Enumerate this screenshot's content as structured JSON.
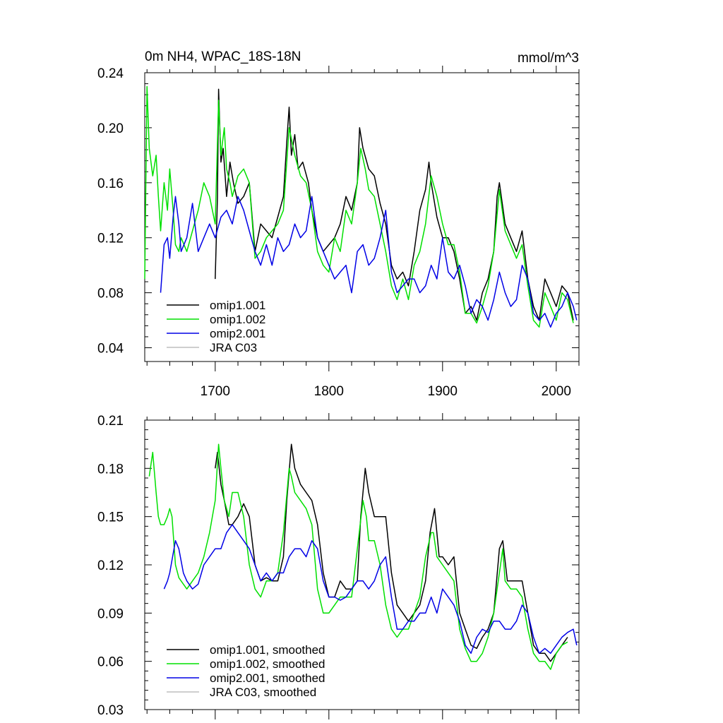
{
  "colors": {
    "omip1.001": "#000000",
    "omip1.002": "#00e000",
    "omip2.001": "#0000e6",
    "JRA C03": "#bdbdbd"
  },
  "chart_data": [
    {
      "type": "line",
      "title": "0m NH4, WPAC_18S-18N",
      "units": "mmol/m^3",
      "xlabel": "",
      "ylabel": "",
      "xlim": [
        1638,
        2020
      ],
      "ylim": [
        0.03,
        0.24
      ],
      "xticks": [
        1700,
        1800,
        1900,
        2000
      ],
      "xtick_labels": [
        "1700",
        "1800",
        "1900",
        "2000"
      ],
      "yticks": [
        0.04,
        0.08,
        0.12,
        0.16,
        0.2,
        0.24
      ],
      "ytick_labels": [
        "0.04",
        "0.08",
        "0.12",
        "0.16",
        "0.20",
        "0.24"
      ],
      "grid": false,
      "legend_position": "bottom-left",
      "legend": [
        "omip1.001",
        "omip1.002",
        "omip2.001",
        "JRA C03"
      ],
      "series": [
        {
          "name": "omip1.001",
          "x": [
            1700,
            1702,
            1703,
            1705,
            1707,
            1710,
            1713,
            1716,
            1720,
            1725,
            1730,
            1735,
            1740,
            1745,
            1750,
            1755,
            1760,
            1763,
            1765,
            1767,
            1770,
            1773,
            1777,
            1782,
            1785,
            1790,
            1795,
            1800,
            1805,
            1810,
            1815,
            1820,
            1825,
            1827,
            1830,
            1835,
            1840,
            1845,
            1850,
            1855,
            1860,
            1865,
            1870,
            1875,
            1880,
            1885,
            1888,
            1890,
            1895,
            1900,
            1905,
            1910,
            1915,
            1920,
            1925,
            1930,
            1935,
            1940,
            1945,
            1948,
            1950,
            1955,
            1960,
            1965,
            1970,
            1975,
            1980,
            1985,
            1990,
            1995,
            2000,
            2005,
            2010,
            2015
          ],
          "y": [
            0.09,
            0.15,
            0.228,
            0.175,
            0.185,
            0.15,
            0.175,
            0.16,
            0.145,
            0.15,
            0.16,
            0.11,
            0.13,
            0.125,
            0.12,
            0.135,
            0.15,
            0.19,
            0.215,
            0.18,
            0.195,
            0.17,
            0.175,
            0.16,
            0.14,
            0.12,
            0.11,
            0.115,
            0.12,
            0.13,
            0.15,
            0.14,
            0.16,
            0.2,
            0.185,
            0.17,
            0.165,
            0.145,
            0.13,
            0.1,
            0.09,
            0.095,
            0.085,
            0.11,
            0.14,
            0.155,
            0.175,
            0.16,
            0.135,
            0.12,
            0.12,
            0.11,
            0.09,
            0.065,
            0.07,
            0.06,
            0.08,
            0.09,
            0.11,
            0.15,
            0.16,
            0.13,
            0.12,
            0.11,
            0.125,
            0.09,
            0.07,
            0.06,
            0.09,
            0.08,
            0.07,
            0.085,
            0.08,
            0.06
          ]
        },
        {
          "name": "omip1.002",
          "x": [
            1638,
            1640,
            1642,
            1645,
            1648,
            1650,
            1652,
            1655,
            1658,
            1660,
            1663,
            1665,
            1668,
            1670,
            1675,
            1680,
            1685,
            1690,
            1695,
            1700,
            1703,
            1705,
            1708,
            1710,
            1713,
            1715,
            1720,
            1725,
            1730,
            1735,
            1740,
            1745,
            1750,
            1755,
            1760,
            1765,
            1770,
            1775,
            1780,
            1785,
            1790,
            1795,
            1800,
            1805,
            1810,
            1815,
            1820,
            1825,
            1828,
            1832,
            1835,
            1840,
            1845,
            1850,
            1855,
            1860,
            1865,
            1870,
            1875,
            1880,
            1885,
            1890,
            1895,
            1900,
            1905,
            1910,
            1915,
            1920,
            1925,
            1930,
            1935,
            1940,
            1945,
            1950,
            1955,
            1960,
            1965,
            1970,
            1975,
            1980,
            1985,
            1990,
            1995,
            2000,
            2005,
            2010,
            2015
          ],
          "y": [
            0.09,
            0.23,
            0.185,
            0.165,
            0.18,
            0.15,
            0.125,
            0.16,
            0.14,
            0.17,
            0.14,
            0.115,
            0.11,
            0.12,
            0.11,
            0.125,
            0.14,
            0.16,
            0.15,
            0.13,
            0.22,
            0.18,
            0.2,
            0.17,
            0.16,
            0.15,
            0.165,
            0.17,
            0.16,
            0.105,
            0.11,
            0.12,
            0.125,
            0.13,
            0.14,
            0.2,
            0.18,
            0.165,
            0.16,
            0.14,
            0.11,
            0.1,
            0.095,
            0.12,
            0.11,
            0.14,
            0.13,
            0.16,
            0.185,
            0.17,
            0.155,
            0.15,
            0.13,
            0.11,
            0.085,
            0.075,
            0.09,
            0.075,
            0.1,
            0.11,
            0.13,
            0.165,
            0.15,
            0.13,
            0.115,
            0.115,
            0.095,
            0.065,
            0.065,
            0.058,
            0.07,
            0.085,
            0.11,
            0.155,
            0.125,
            0.115,
            0.105,
            0.115,
            0.085,
            0.06,
            0.055,
            0.08,
            0.07,
            0.06,
            0.08,
            0.075,
            0.058
          ]
        },
        {
          "name": "omip2.001",
          "x": [
            1652,
            1655,
            1658,
            1660,
            1663,
            1665,
            1668,
            1670,
            1675,
            1680,
            1685,
            1690,
            1695,
            1700,
            1705,
            1710,
            1715,
            1720,
            1725,
            1730,
            1735,
            1740,
            1745,
            1750,
            1755,
            1760,
            1765,
            1770,
            1775,
            1780,
            1785,
            1790,
            1795,
            1800,
            1805,
            1810,
            1815,
            1820,
            1825,
            1830,
            1835,
            1840,
            1845,
            1850,
            1855,
            1860,
            1865,
            1870,
            1875,
            1880,
            1885,
            1890,
            1895,
            1900,
            1905,
            1910,
            1915,
            1920,
            1925,
            1930,
            1935,
            1940,
            1945,
            1950,
            1955,
            1960,
            1965,
            1970,
            1975,
            1980,
            1985,
            1990,
            1995,
            2000,
            2005,
            2010,
            2015,
            2018
          ],
          "y": [
            0.08,
            0.115,
            0.12,
            0.105,
            0.135,
            0.15,
            0.13,
            0.11,
            0.12,
            0.145,
            0.11,
            0.12,
            0.13,
            0.12,
            0.135,
            0.14,
            0.13,
            0.15,
            0.14,
            0.125,
            0.11,
            0.1,
            0.115,
            0.1,
            0.12,
            0.11,
            0.115,
            0.13,
            0.12,
            0.125,
            0.15,
            0.12,
            0.11,
            0.1,
            0.09,
            0.095,
            0.1,
            0.08,
            0.11,
            0.115,
            0.1,
            0.105,
            0.12,
            0.14,
            0.095,
            0.08,
            0.085,
            0.09,
            0.09,
            0.08,
            0.085,
            0.1,
            0.09,
            0.12,
            0.095,
            0.09,
            0.1,
            0.085,
            0.065,
            0.075,
            0.07,
            0.06,
            0.075,
            0.095,
            0.08,
            0.07,
            0.075,
            0.1,
            0.09,
            0.065,
            0.06,
            0.065,
            0.055,
            0.065,
            0.07,
            0.08,
            0.07,
            0.06
          ]
        }
      ]
    },
    {
      "type": "line",
      "title": "",
      "xlabel": "",
      "ylabel": "",
      "xlim": [
        1638,
        2020
      ],
      "ylim": [
        0.03,
        0.21
      ],
      "xticks": [
        1700,
        1800,
        1900,
        2000
      ],
      "xtick_labels": [],
      "yticks": [
        0.03,
        0.06,
        0.09,
        0.12,
        0.15,
        0.18,
        0.21
      ],
      "ytick_labels": [
        "0.03",
        "0.06",
        "0.09",
        "0.12",
        "0.15",
        "0.18",
        "0.21"
      ],
      "grid": false,
      "legend_position": "bottom-left",
      "legend": [
        "omip1.001, smoothed",
        "omip1.002, smoothed",
        "omip2.001, smoothed",
        "JRA C03, smoothed"
      ],
      "series": [
        {
          "name": "omip1.001, smoothed",
          "x": [
            1700,
            1702,
            1705,
            1708,
            1712,
            1715,
            1720,
            1725,
            1730,
            1735,
            1740,
            1745,
            1750,
            1755,
            1760,
            1763,
            1767,
            1770,
            1775,
            1780,
            1785,
            1790,
            1795,
            1800,
            1805,
            1810,
            1815,
            1820,
            1825,
            1828,
            1832,
            1835,
            1840,
            1845,
            1850,
            1855,
            1860,
            1865,
            1870,
            1875,
            1880,
            1885,
            1889,
            1893,
            1897,
            1900,
            1905,
            1910,
            1915,
            1920,
            1925,
            1930,
            1935,
            1940,
            1945,
            1950,
            1953,
            1957,
            1960,
            1965,
            1970,
            1975,
            1980,
            1985,
            1990,
            1995,
            2000,
            2005,
            2010
          ],
          "y": [
            0.18,
            0.19,
            0.17,
            0.16,
            0.145,
            0.145,
            0.15,
            0.158,
            0.15,
            0.12,
            0.11,
            0.112,
            0.11,
            0.11,
            0.125,
            0.16,
            0.195,
            0.18,
            0.17,
            0.165,
            0.16,
            0.145,
            0.115,
            0.1,
            0.1,
            0.11,
            0.105,
            0.105,
            0.11,
            0.15,
            0.18,
            0.165,
            0.15,
            0.15,
            0.15,
            0.115,
            0.095,
            0.09,
            0.085,
            0.09,
            0.095,
            0.11,
            0.14,
            0.155,
            0.125,
            0.125,
            0.12,
            0.125,
            0.09,
            0.08,
            0.07,
            0.068,
            0.075,
            0.08,
            0.09,
            0.13,
            0.135,
            0.11,
            0.11,
            0.11,
            0.11,
            0.09,
            0.07,
            0.065,
            0.065,
            0.06,
            0.065,
            0.07,
            0.075
          ]
        },
        {
          "name": "omip1.002, smoothed",
          "x": [
            1642,
            1645,
            1648,
            1650,
            1652,
            1655,
            1658,
            1660,
            1662,
            1665,
            1668,
            1670,
            1675,
            1680,
            1685,
            1690,
            1695,
            1700,
            1703,
            1705,
            1708,
            1712,
            1715,
            1720,
            1725,
            1730,
            1735,
            1740,
            1745,
            1750,
            1755,
            1760,
            1765,
            1767,
            1770,
            1775,
            1780,
            1785,
            1790,
            1795,
            1800,
            1805,
            1810,
            1815,
            1820,
            1825,
            1830,
            1833,
            1835,
            1840,
            1845,
            1850,
            1855,
            1860,
            1865,
            1870,
            1875,
            1880,
            1885,
            1890,
            1892,
            1895,
            1900,
            1905,
            1910,
            1915,
            1920,
            1925,
            1930,
            1935,
            1940,
            1945,
            1950,
            1953,
            1955,
            1960,
            1965,
            1970,
            1975,
            1980,
            1985,
            1990,
            1995,
            2000,
            2005,
            2010
          ],
          "y": [
            0.175,
            0.19,
            0.165,
            0.15,
            0.145,
            0.145,
            0.15,
            0.155,
            0.15,
            0.12,
            0.112,
            0.11,
            0.105,
            0.11,
            0.115,
            0.125,
            0.14,
            0.16,
            0.195,
            0.18,
            0.16,
            0.15,
            0.165,
            0.165,
            0.15,
            0.12,
            0.105,
            0.1,
            0.11,
            0.11,
            0.115,
            0.14,
            0.18,
            0.175,
            0.165,
            0.16,
            0.155,
            0.145,
            0.105,
            0.09,
            0.09,
            0.095,
            0.1,
            0.1,
            0.1,
            0.13,
            0.16,
            0.15,
            0.135,
            0.135,
            0.12,
            0.095,
            0.08,
            0.075,
            0.08,
            0.08,
            0.09,
            0.1,
            0.125,
            0.14,
            0.14,
            0.125,
            0.12,
            0.115,
            0.11,
            0.08,
            0.068,
            0.06,
            0.06,
            0.065,
            0.075,
            0.09,
            0.115,
            0.13,
            0.11,
            0.105,
            0.105,
            0.1,
            0.08,
            0.065,
            0.06,
            0.06,
            0.055,
            0.065,
            0.07,
            0.072
          ]
        },
        {
          "name": "omip2.001, smoothed",
          "x": [
            1655,
            1658,
            1660,
            1665,
            1668,
            1672,
            1675,
            1680,
            1685,
            1690,
            1695,
            1700,
            1705,
            1710,
            1715,
            1720,
            1725,
            1730,
            1735,
            1740,
            1745,
            1750,
            1755,
            1760,
            1765,
            1770,
            1775,
            1780,
            1785,
            1790,
            1795,
            1800,
            1805,
            1810,
            1815,
            1820,
            1825,
            1830,
            1835,
            1840,
            1845,
            1850,
            1855,
            1860,
            1865,
            1870,
            1875,
            1880,
            1885,
            1890,
            1895,
            1900,
            1905,
            1910,
            1915,
            1920,
            1925,
            1930,
            1935,
            1940,
            1945,
            1950,
            1955,
            1960,
            1965,
            1970,
            1975,
            1980,
            1985,
            1990,
            1995,
            2000,
            2005,
            2010,
            2015,
            2018
          ],
          "y": [
            0.105,
            0.11,
            0.115,
            0.135,
            0.13,
            0.115,
            0.11,
            0.105,
            0.108,
            0.12,
            0.125,
            0.13,
            0.13,
            0.14,
            0.145,
            0.14,
            0.135,
            0.13,
            0.12,
            0.11,
            0.115,
            0.11,
            0.115,
            0.115,
            0.125,
            0.13,
            0.13,
            0.125,
            0.135,
            0.13,
            0.11,
            0.1,
            0.1,
            0.098,
            0.1,
            0.105,
            0.11,
            0.11,
            0.105,
            0.11,
            0.12,
            0.125,
            0.1,
            0.08,
            0.08,
            0.085,
            0.085,
            0.09,
            0.09,
            0.1,
            0.09,
            0.105,
            0.1,
            0.095,
            0.085,
            0.07,
            0.065,
            0.075,
            0.08,
            0.078,
            0.085,
            0.085,
            0.08,
            0.08,
            0.085,
            0.095,
            0.09,
            0.075,
            0.065,
            0.068,
            0.065,
            0.07,
            0.075,
            0.078,
            0.08,
            0.07
          ]
        }
      ]
    }
  ]
}
